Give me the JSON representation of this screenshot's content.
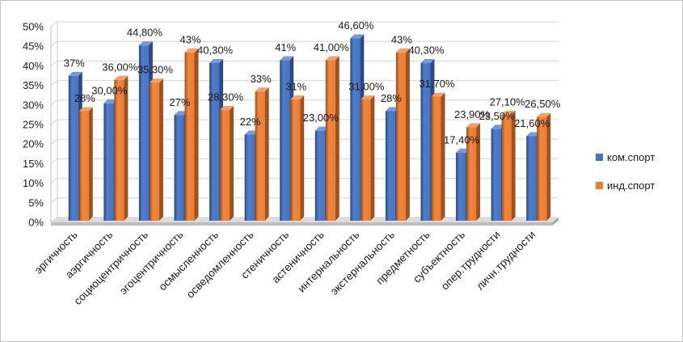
{
  "chart_data": {
    "type": "bar",
    "three_d": true,
    "categories": [
      "эргичность",
      "аэргичность",
      "социоцентричность",
      "эгоцентричность",
      "осмысленность",
      "осведомленность",
      "стеничность",
      "астеничность",
      "интернальность",
      "экстернальность",
      "предметность",
      "субъектность",
      "опер.трудности",
      "личн.трудности"
    ],
    "series": [
      {
        "name": "ком.спорт",
        "color": "#4472c4",
        "values": [
          37,
          30,
          44.8,
          27,
          40.3,
          22,
          41,
          23,
          46.6,
          28,
          40.3,
          17.4,
          23.5,
          21.6
        ],
        "labels": [
          "37%",
          "30,00%",
          "44,80%",
          "27%",
          "40,30%",
          "22%",
          "41%",
          "23,00%",
          "46,60%",
          "28%",
          "40,30%",
          "17,40%",
          "23,50%",
          "21,60%"
        ]
      },
      {
        "name": "инд.спорт",
        "color": "#ed7d31",
        "values": [
          28,
          36,
          35.3,
          43,
          28.3,
          33,
          31,
          41,
          31,
          43,
          31.7,
          23.9,
          27.1,
          26.5
        ],
        "labels": [
          "28%",
          "36,00%",
          "35,30%",
          "43%",
          "28,30%",
          "33%",
          "31%",
          "41,00%",
          "31,00%",
          "43%",
          "31,70%",
          "23,90%",
          "27,10%",
          "26,50%"
        ]
      }
    ],
    "ylim": [
      0,
      50
    ],
    "yticks": [
      "0%",
      "5%",
      "10%",
      "15%",
      "20%",
      "25%",
      "30%",
      "35%",
      "40%",
      "45%",
      "50%"
    ],
    "grid": true,
    "legend": "right"
  }
}
